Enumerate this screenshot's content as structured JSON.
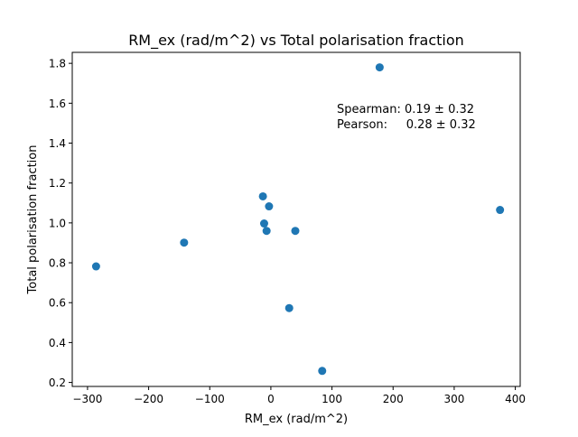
{
  "chart_data": {
    "type": "scatter",
    "title": "RM_ex (rad/m^2) vs Total polarisation fraction",
    "xlabel": "RM_ex (rad/m^2)",
    "ylabel": "Total polarisation fraction",
    "xlim": [
      -325,
      408
    ],
    "ylim": [
      0.18,
      1.855
    ],
    "xticks": [
      -300,
      -200,
      -100,
      0,
      100,
      200,
      300,
      400
    ],
    "xtick_labels": [
      "−300",
      "−200",
      "−100",
      "0",
      "100",
      "200",
      "300",
      "400"
    ],
    "yticks": [
      0.2,
      0.4,
      0.6,
      0.8,
      1.0,
      1.2,
      1.4,
      1.6,
      1.8
    ],
    "ytick_labels": [
      "0.2",
      "0.4",
      "0.6",
      "0.8",
      "1.0",
      "1.2",
      "1.4",
      "1.6",
      "1.8"
    ],
    "grid": false,
    "marker_color": "#1f77b4",
    "points": [
      {
        "x": -286,
        "y": 0.782
      },
      {
        "x": -142,
        "y": 0.901
      },
      {
        "x": -13,
        "y": 1.133
      },
      {
        "x": -3,
        "y": 1.083
      },
      {
        "x": -11,
        "y": 0.997
      },
      {
        "x": -7,
        "y": 0.96
      },
      {
        "x": 40,
        "y": 0.96
      },
      {
        "x": 30,
        "y": 0.573
      },
      {
        "x": 84,
        "y": 0.258
      },
      {
        "x": 178,
        "y": 1.78
      },
      {
        "x": 375,
        "y": 1.065
      }
    ],
    "annotations": [
      "Spearman: 0.19 ± 0.32",
      "Pearson:     0.28 ± 0.32"
    ]
  }
}
